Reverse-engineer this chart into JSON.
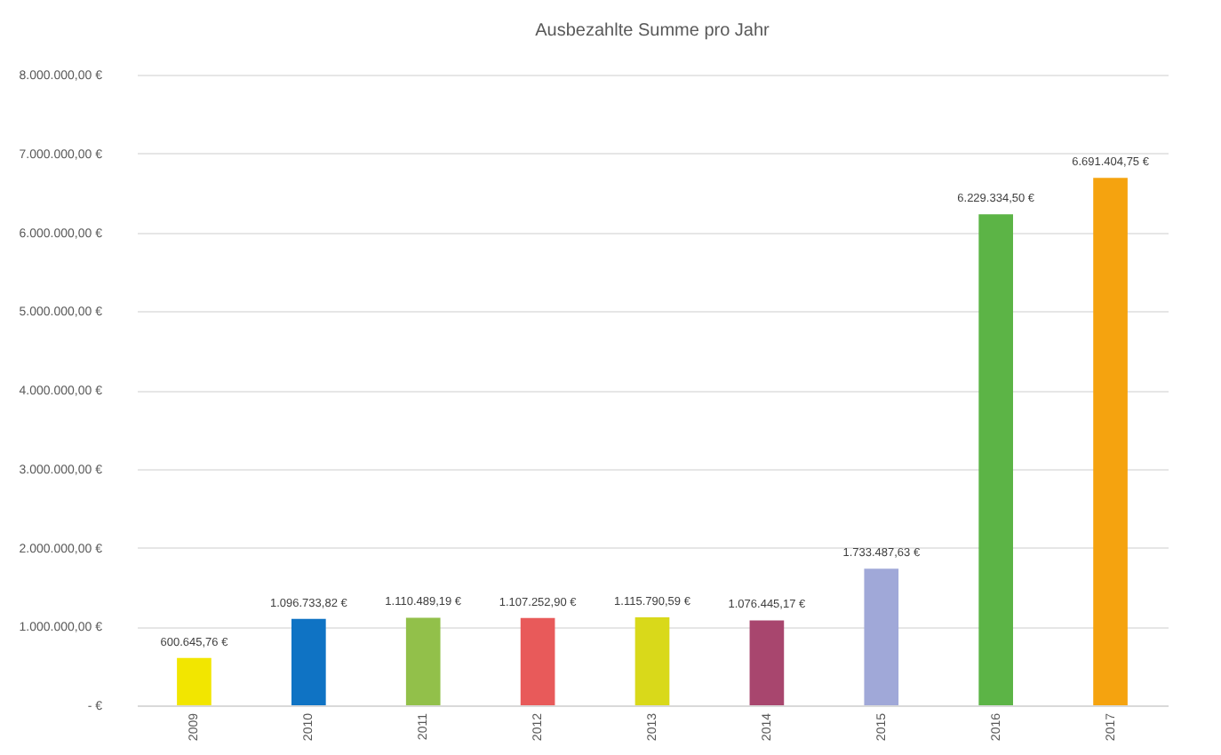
{
  "chart_data": {
    "type": "bar",
    "title": "Ausbezahlte Summe pro Jahr",
    "categories": [
      "2009",
      "2010",
      "2011",
      "2012",
      "2013",
      "2014",
      "2015",
      "2016",
      "2017"
    ],
    "values": [
      600645.76,
      1096733.82,
      1110489.19,
      1107252.9,
      1115790.59,
      1076445.17,
      1733487.63,
      6229334.5,
      6691404.75
    ],
    "colors": [
      "#f2e600",
      "#0f73c4",
      "#92c04a",
      "#e85a5a",
      "#d9d91a",
      "#a8466e",
      "#a0a8d8",
      "#5cb446",
      "#f5a30f"
    ],
    "value_labels": [
      "600.645,76 €",
      "1.096.733,82 €",
      "1.110.489,19 €",
      "1.107.252,90 €",
      "1.115.790,59 €",
      "1.076.445,17 €",
      "1.733.487,63 €",
      "6.229.334,50 €",
      "6.691.404,75 €"
    ],
    "ylim": [
      0,
      8000000
    ],
    "yticks": [
      {
        "value": 0,
        "label": "- €"
      },
      {
        "value": 1000000,
        "label": "1.000.000,00 €"
      },
      {
        "value": 2000000,
        "label": "2.000.000,00 €"
      },
      {
        "value": 3000000,
        "label": "3.000.000,00 €"
      },
      {
        "value": 4000000,
        "label": "4.000.000,00 €"
      },
      {
        "value": 5000000,
        "label": "5.000.000,00 €"
      },
      {
        "value": 6000000,
        "label": "6.000.000,00 €"
      },
      {
        "value": 7000000,
        "label": "7.000.000,00 €"
      },
      {
        "value": 8000000,
        "label": "8.000.000,00 €"
      }
    ],
    "grid": "y"
  }
}
